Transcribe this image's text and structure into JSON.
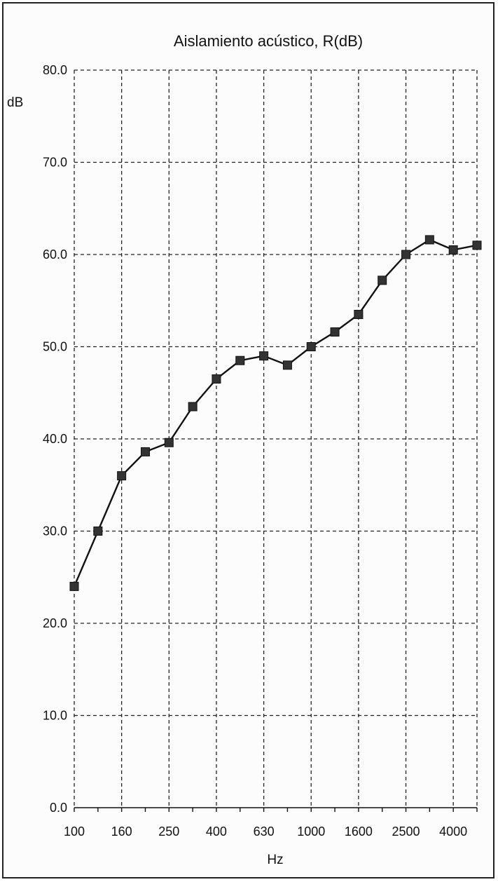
{
  "chart_data": {
    "type": "line",
    "title": "Aislamiento acústico, R(dB)",
    "xlabel": "Hz",
    "ylabel": "dB",
    "x": [
      "100",
      "125",
      "160",
      "200",
      "250",
      "315",
      "400",
      "500",
      "630",
      "800",
      "1000",
      "1250",
      "1600",
      "2000",
      "2500",
      "3150",
      "4000",
      "5000"
    ],
    "x_tick_labels": [
      "100",
      "160",
      "250",
      "400",
      "630",
      "1000",
      "1600",
      "2500",
      "4000"
    ],
    "y_tick_labels": [
      "80.0",
      "70.0",
      "60.0",
      "50.0",
      "40.0",
      "30.0",
      "20.0",
      "10.0",
      "0.0"
    ],
    "ylim": [
      0,
      80
    ],
    "grid": true,
    "series": [
      {
        "values": [
          24.0,
          30.0,
          36.0,
          38.6,
          39.6,
          43.5,
          46.5,
          48.5,
          49.0,
          48.0,
          50.0,
          51.6,
          53.5,
          57.2,
          60.0,
          61.6,
          60.5,
          61.0
        ],
        "color": "#111111",
        "marker": "square"
      }
    ]
  }
}
